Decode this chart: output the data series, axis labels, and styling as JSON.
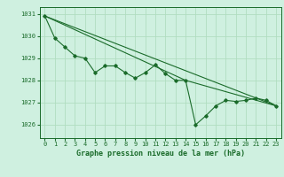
{
  "title": "Graphe pression niveau de la mer (hPa)",
  "xlabel_ticks": [
    0,
    1,
    2,
    3,
    4,
    5,
    6,
    7,
    8,
    9,
    10,
    11,
    12,
    13,
    14,
    15,
    16,
    17,
    18,
    19,
    20,
    21,
    22,
    23
  ],
  "ylim": [
    1025.4,
    1031.3
  ],
  "yticks": [
    1026,
    1027,
    1028,
    1029,
    1030,
    1031
  ],
  "background_color": "#cff0e0",
  "grid_color": "#b0ddc0",
  "line_color": "#1a6b2a",
  "series1": [
    [
      0,
      1030.9
    ],
    [
      1,
      1029.9
    ],
    [
      2,
      1029.5
    ],
    [
      3,
      1029.1
    ],
    [
      4,
      1029.0
    ],
    [
      5,
      1028.35
    ],
    [
      6,
      1028.65
    ],
    [
      7,
      1028.65
    ],
    [
      8,
      1028.35
    ],
    [
      9,
      1028.1
    ],
    [
      10,
      1028.35
    ],
    [
      11,
      1028.7
    ],
    [
      12,
      1028.3
    ],
    [
      13,
      1028.0
    ],
    [
      14,
      1028.0
    ],
    [
      15,
      1026.0
    ],
    [
      16,
      1026.4
    ],
    [
      17,
      1026.85
    ],
    [
      18,
      1027.1
    ],
    [
      19,
      1027.05
    ],
    [
      20,
      1027.1
    ],
    [
      21,
      1027.2
    ],
    [
      22,
      1027.1
    ],
    [
      23,
      1026.85
    ]
  ],
  "series2": [
    [
      0,
      1030.9
    ],
    [
      23,
      1026.85
    ]
  ],
  "series3": [
    [
      0,
      1030.9
    ],
    [
      14,
      1028.0
    ],
    [
      23,
      1026.85
    ]
  ],
  "figsize": [
    3.2,
    2.0
  ],
  "dpi": 100
}
